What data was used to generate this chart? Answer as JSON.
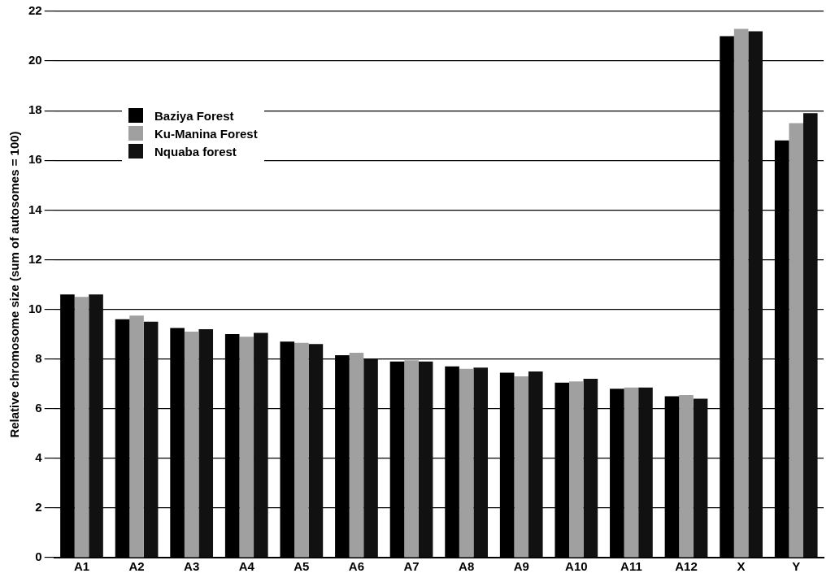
{
  "chart_data": {
    "type": "bar",
    "ylabel": "Relative chromosome size (sum of autosomes = 100)",
    "categories": [
      "A1",
      "A2",
      "A3",
      "A4",
      "A5",
      "A6",
      "A7",
      "A8",
      "A9",
      "A10",
      "A11",
      "A12",
      "X",
      "Y"
    ],
    "series": [
      {
        "name": "Baziya Forest",
        "color": "#000000",
        "values": [
          10.6,
          9.6,
          9.25,
          9.0,
          8.7,
          8.15,
          7.9,
          7.7,
          7.45,
          7.05,
          6.8,
          6.5,
          21.0,
          16.8
        ]
      },
      {
        "name": "Ku-Manina Forest",
        "color": "#a0a0a0",
        "values": [
          10.5,
          9.75,
          9.1,
          8.9,
          8.65,
          8.25,
          7.95,
          7.6,
          7.3,
          7.1,
          6.85,
          6.55,
          21.3,
          17.5
        ]
      },
      {
        "name": "Nquaba forest",
        "color": "#111111",
        "values": [
          10.6,
          9.5,
          9.2,
          9.05,
          8.6,
          8.0,
          7.9,
          7.65,
          7.5,
          7.2,
          6.85,
          6.4,
          21.2,
          17.9
        ]
      }
    ],
    "ylim": [
      0,
      22
    ],
    "yticks": [
      0,
      2,
      4,
      6,
      8,
      10,
      12,
      14,
      16,
      18,
      20,
      22
    ],
    "grid": "y",
    "legend": "top left"
  }
}
